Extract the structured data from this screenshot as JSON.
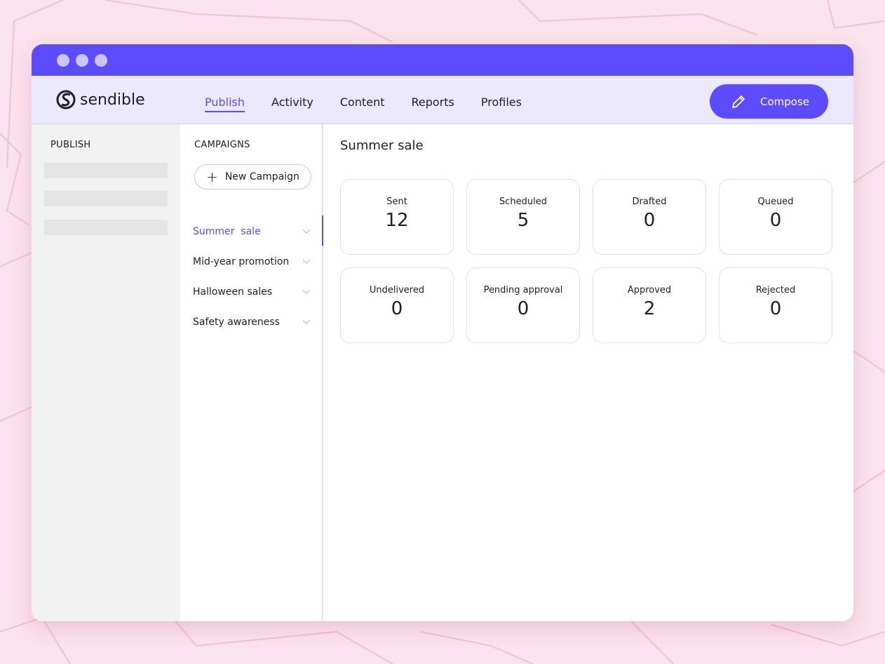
{
  "logo": "sendible",
  "nav": [
    "Publish",
    "Activity",
    "Content",
    "Reports",
    "Profiles"
  ],
  "compose_label": "Compose",
  "left_sidebar": {
    "title": "PUBLISH"
  },
  "campaigns": {
    "title": "CAMPAIGNS",
    "new_label": "New Campaign",
    "items": [
      "Summer  sale",
      "Mid-year promotion",
      "Halloween sales",
      "Safety awareness"
    ]
  },
  "main": {
    "title": "Summer sale",
    "stats": [
      {
        "label": "Sent",
        "value": "12"
      },
      {
        "label": "Scheduled",
        "value": "5"
      },
      {
        "label": "Drafted",
        "value": "0"
      },
      {
        "label": "Queued",
        "value": "0"
      },
      {
        "label": "Undelivered",
        "value": "0"
      },
      {
        "label": "Pending approval",
        "value": "0"
      },
      {
        "label": "Approved",
        "value": "2"
      },
      {
        "label": "Rejected",
        "value": "0"
      }
    ]
  },
  "colors": {
    "accent": "#5d4cff",
    "header": "#ece9fe",
    "background": "#fce3ee"
  }
}
